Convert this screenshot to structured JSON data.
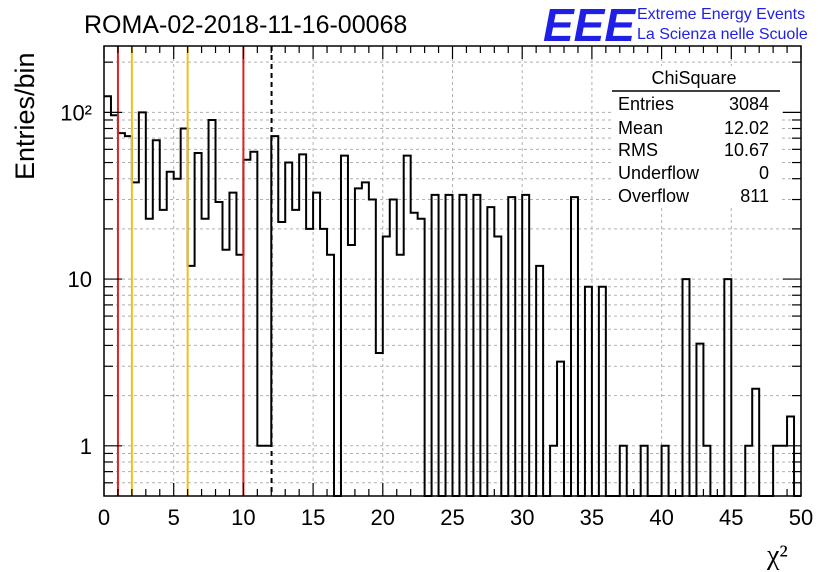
{
  "title": "ROMA-02-2018-11-16-00068",
  "logo": {
    "letters": "EEE",
    "line1": "Extreme Energy Events",
    "line2": "La Scienza nelle Scuole",
    "color": "#1f1fe6"
  },
  "ylabel": "Entries/bin",
  "xlabel": "χ²",
  "stats": {
    "name": "ChiSquare",
    "rows": [
      {
        "label": "Entries",
        "value": "3084"
      },
      {
        "label": "Mean",
        "value": "12.02"
      },
      {
        "label": "RMS",
        "value": "10.67"
      },
      {
        "label": "Underflow",
        "value": "0"
      },
      {
        "label": "Overflow",
        "value": "811"
      }
    ]
  },
  "chart_data": {
    "type": "histogram",
    "title": "ROMA-02-2018-11-16-00068",
    "xlabel": "χ²",
    "ylabel": "Entries/bin",
    "xlim": [
      0,
      50
    ],
    "ylim": [
      0.5,
      250
    ],
    "yscale": "log",
    "grid": true,
    "bin_width": 0.5,
    "x_ticks": [
      0,
      5,
      10,
      15,
      20,
      25,
      30,
      35,
      40,
      45,
      50
    ],
    "y_tick_labels": [
      {
        "value": 1,
        "label": "1"
      },
      {
        "value": 10,
        "label": "10"
      },
      {
        "value": 100,
        "label": "10²"
      }
    ],
    "values": [
      125,
      96,
      75,
      72,
      38,
      100,
      23,
      68,
      26,
      44,
      40,
      80,
      12,
      57,
      23,
      90,
      29,
      15,
      33,
      14,
      52,
      58,
      1,
      1,
      72,
      22,
      50,
      26,
      56,
      20,
      33,
      20,
      14,
      0,
      55,
      16,
      35,
      38,
      30,
      3.6,
      18,
      30,
      14,
      55,
      25,
      23,
      0,
      32,
      0,
      32,
      0,
      32,
      0,
      32,
      0,
      27,
      18,
      0,
      31,
      0,
      32,
      0,
      12,
      0,
      1,
      3.2,
      0,
      31,
      0,
      9,
      0,
      9,
      0,
      0,
      1,
      0,
      0,
      1,
      0,
      0,
      1,
      0,
      0,
      10,
      0,
      4.1,
      1,
      0,
      0,
      10,
      0,
      0,
      1,
      2.2,
      0,
      0,
      1,
      1,
      1.5,
      0
    ],
    "reference_lines": [
      {
        "x": 1,
        "color": "#e02020",
        "style": "solid"
      },
      {
        "x": 2,
        "color": "#f0c020",
        "style": "solid"
      },
      {
        "x": 6,
        "color": "#f0c020",
        "style": "solid"
      },
      {
        "x": 10,
        "color": "#e02020",
        "style": "solid"
      },
      {
        "x": 12.02,
        "color": "#000000",
        "style": "dashed"
      }
    ]
  }
}
